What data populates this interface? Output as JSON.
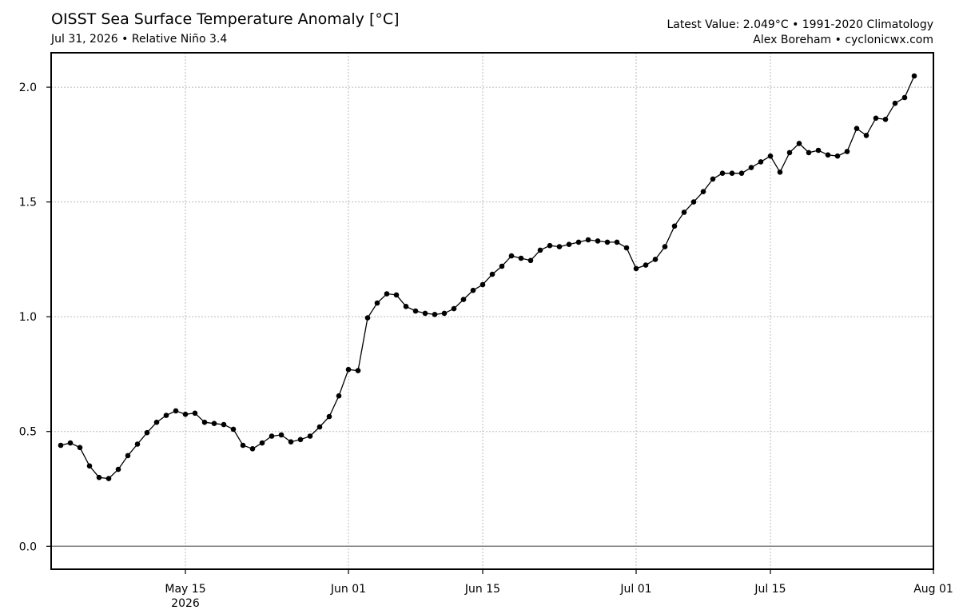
{
  "header": {
    "title": "OISST Sea Surface Temperature Anomaly [°C]",
    "subtitle": "Jul 31, 2026 • Relative Niño 3.4",
    "right_line1": "Latest Value: 2.049°C • 1991-2020 Climatology",
    "right_line2": "Alex Boreham • cyclonicwx.com"
  },
  "chart_data": {
    "type": "line",
    "title": "OISST Sea Surface Temperature Anomaly [°C]",
    "subtitle": "Jul 31, 2026 • Relative Niño 3.4",
    "xlabel": "",
    "ylabel": "",
    "x_type": "date",
    "x_start": "2026-05-02",
    "x_range": [
      "2026-05-01",
      "2026-08-01"
    ],
    "ylim": [
      -0.1,
      2.15
    ],
    "y_ticks": [
      0.0,
      0.5,
      1.0,
      1.5,
      2.0
    ],
    "y_tick_labels": [
      "0.0",
      "0.5",
      "1.0",
      "1.5",
      "2.0"
    ],
    "x_ticks": [
      {
        "date": "2026-05-15",
        "label": "May 15",
        "sublabel": "2026"
      },
      {
        "date": "2026-06-01",
        "label": "Jun 01",
        "sublabel": ""
      },
      {
        "date": "2026-06-15",
        "label": "Jun 15",
        "sublabel": ""
      },
      {
        "date": "2026-07-01",
        "label": "Jul 01",
        "sublabel": ""
      },
      {
        "date": "2026-07-15",
        "label": "Jul 15",
        "sublabel": ""
      },
      {
        "date": "2026-08-01",
        "label": "Aug 01",
        "sublabel": ""
      }
    ],
    "grid": true,
    "zero_line": true,
    "line_color": "#000000",
    "marker": "circle",
    "series": [
      {
        "values": [
          0.44,
          0.45,
          0.43,
          0.35,
          0.3,
          0.295,
          0.335,
          0.395,
          0.445,
          0.495,
          0.54,
          0.57,
          0.59,
          0.575,
          0.58,
          0.54,
          0.535,
          0.53,
          0.51,
          0.44,
          0.425,
          0.45,
          0.48,
          0.485,
          0.455,
          0.465,
          0.48,
          0.52,
          0.565,
          0.655,
          0.77,
          0.765,
          0.995,
          1.06,
          1.1,
          1.095,
          1.045,
          1.025,
          1.015,
          1.01,
          1.015,
          1.035,
          1.075,
          1.115,
          1.14,
          1.185,
          1.22,
          1.265,
          1.255,
          1.245,
          1.29,
          1.31,
          1.305,
          1.315,
          1.325,
          1.335,
          1.33,
          1.325,
          1.325,
          1.3,
          1.21,
          1.225,
          1.25,
          1.305,
          1.395,
          1.455,
          1.5,
          1.545,
          1.6,
          1.625,
          1.625,
          1.625,
          1.65,
          1.675,
          1.7,
          1.63,
          1.715,
          1.755,
          1.715,
          1.725,
          1.705,
          1.7,
          1.72,
          1.82,
          1.79,
          1.865,
          1.86,
          1.93,
          1.955,
          2.049
        ]
      }
    ]
  }
}
